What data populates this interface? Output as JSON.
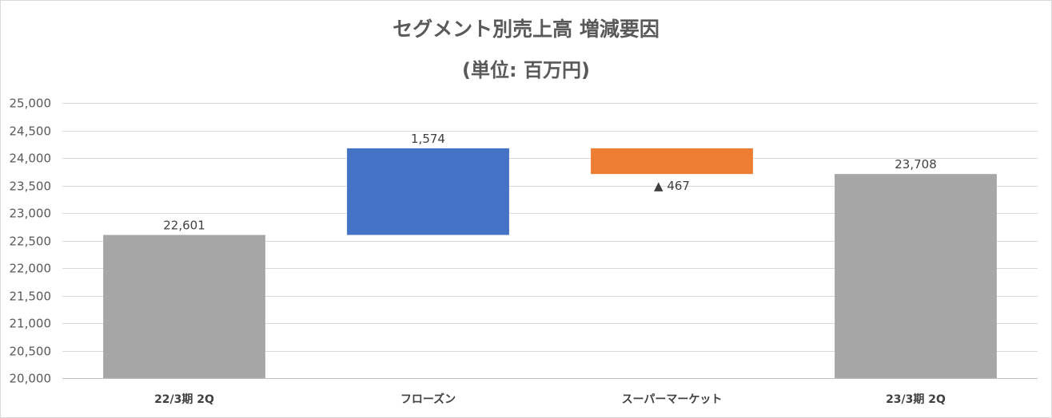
{
  "chart_data": {
    "type": "bar",
    "subtype": "waterfall",
    "title": "セグメント別売上高 増減要因",
    "subtitle": "(単位: 百万円)",
    "categories": [
      "22/3期 2Q",
      "フローズン",
      "スーパーマーケット",
      "23/3期 2Q"
    ],
    "bars": [
      {
        "kind": "total",
        "start": 20000,
        "end": 22601,
        "label": "22,601",
        "color": "#a6a6a6"
      },
      {
        "kind": "increase",
        "start": 22601,
        "end": 24175,
        "label": "1,574",
        "color": "#4472c4"
      },
      {
        "kind": "decrease",
        "start": 24175,
        "end": 23708,
        "label": "▲ 467",
        "color": "#ed7d31"
      },
      {
        "kind": "total",
        "start": 20000,
        "end": 23708,
        "label": "23,708",
        "color": "#a6a6a6"
      }
    ],
    "ylim": [
      20000,
      25000
    ],
    "y_ticks": [
      20000,
      20500,
      21000,
      21500,
      22000,
      22500,
      23000,
      23500,
      24000,
      24500,
      25000
    ],
    "y_tick_labels": [
      "20,000",
      "20,500",
      "21,000",
      "21,500",
      "22,000",
      "22,500",
      "23,000",
      "23,500",
      "24,000",
      "24,500",
      "25,000"
    ],
    "grid": true,
    "legend": "none",
    "gridline_color": "#d9d9d9",
    "axis_line_color": "#bfbfbf"
  }
}
